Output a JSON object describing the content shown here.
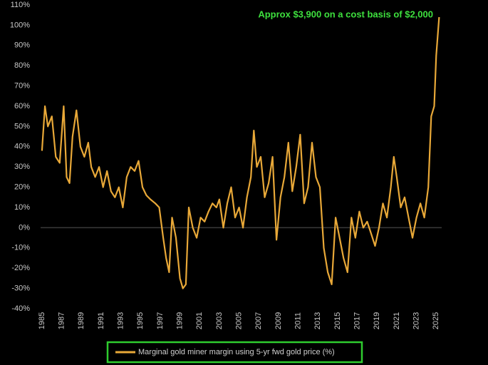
{
  "chart_data": {
    "type": "line",
    "annotation": "Approx $3,900 on a cost  basis of $2,000",
    "series": [
      {
        "name": "Marginal gold miner margin using 5-yr fwd gold price (%)",
        "color": "#e8a838",
        "x": [
          1985.0,
          1985.3,
          1985.6,
          1986.0,
          1986.4,
          1986.8,
          1987.2,
          1987.5,
          1987.8,
          1988.1,
          1988.5,
          1988.9,
          1989.3,
          1989.7,
          1990.0,
          1990.4,
          1990.8,
          1991.2,
          1991.6,
          1992.0,
          1992.4,
          1992.8,
          1993.2,
          1993.6,
          1994.0,
          1994.4,
          1994.8,
          1995.2,
          1995.6,
          1996.0,
          1996.5,
          1996.9,
          1997.3,
          1997.6,
          1997.9,
          1998.2,
          1998.6,
          1999.0,
          1999.3,
          1999.6,
          1999.9,
          2000.3,
          2000.7,
          2001.1,
          2001.5,
          2001.9,
          2002.3,
          2002.7,
          2003.0,
          2003.4,
          2003.8,
          2004.2,
          2004.6,
          2005.0,
          2005.4,
          2005.8,
          2006.2,
          2006.5,
          2006.8,
          2007.2,
          2007.6,
          2008.0,
          2008.4,
          2008.8,
          2009.2,
          2009.6,
          2010.0,
          2010.4,
          2010.8,
          2011.2,
          2011.6,
          2012.0,
          2012.4,
          2012.8,
          2013.2,
          2013.6,
          2014.0,
          2014.4,
          2014.8,
          2015.2,
          2015.6,
          2016.0,
          2016.4,
          2016.8,
          2017.2,
          2017.6,
          2018.0,
          2018.4,
          2018.8,
          2019.2,
          2019.6,
          2020.0,
          2020.4,
          2020.7,
          2021.0,
          2021.4,
          2021.8,
          2022.2,
          2022.6,
          2023.0,
          2023.4,
          2023.8,
          2024.2,
          2024.5,
          2024.8,
          2025.0,
          2025.3
        ],
        "values": [
          38,
          60,
          50,
          55,
          35,
          32,
          60,
          25,
          22,
          45,
          58,
          40,
          35,
          42,
          30,
          25,
          30,
          20,
          28,
          18,
          15,
          20,
          10,
          25,
          30,
          28,
          33,
          20,
          16,
          14,
          12,
          10,
          -5,
          -15,
          -22,
          5,
          -5,
          -25,
          -30,
          -28,
          10,
          0,
          -5,
          5,
          3,
          8,
          12,
          10,
          14,
          0,
          12,
          20,
          5,
          10,
          0,
          15,
          25,
          48,
          30,
          35,
          15,
          22,
          35,
          -6,
          15,
          25,
          42,
          18,
          30,
          46,
          12,
          20,
          42,
          25,
          20,
          -10,
          -22,
          -28,
          5,
          -5,
          -15,
          -22,
          5,
          -5,
          8,
          0,
          3,
          -3,
          -9,
          0,
          12,
          5,
          20,
          35,
          25,
          10,
          15,
          5,
          -5,
          5,
          12,
          5,
          20,
          55,
          60,
          85,
          104
        ]
      }
    ],
    "xlim": [
      1984.5,
      2026.5
    ],
    "xticks": [
      1985,
      1987,
      1989,
      1991,
      1993,
      1995,
      1997,
      1999,
      2001,
      2003,
      2005,
      2007,
      2009,
      2011,
      2013,
      2015,
      2017,
      2019,
      2021,
      2023,
      2025
    ],
    "ylim": [
      -40,
      110
    ],
    "yticks": [
      {
        "value": 110,
        "label": "110%"
      },
      {
        "value": 100,
        "label": "100%"
      },
      {
        "value": 90,
        "label": "90%"
      },
      {
        "value": 80,
        "label": "80%"
      },
      {
        "value": 70,
        "label": "70%"
      },
      {
        "value": 60,
        "label": "60%"
      },
      {
        "value": 50,
        "label": "50%"
      },
      {
        "value": 40,
        "label": "40%"
      },
      {
        "value": 30,
        "label": "30%"
      },
      {
        "value": 20,
        "label": "20%"
      },
      {
        "value": 10,
        "label": "10%"
      },
      {
        "value": 0,
        "label": "0%"
      },
      {
        "value": -10,
        "label": "-10%"
      },
      {
        "value": -20,
        "label": "-20%"
      },
      {
        "value": -30,
        "label": "-30%"
      },
      {
        "value": -40,
        "label": "-40%"
      }
    ],
    "zero_line": true
  }
}
